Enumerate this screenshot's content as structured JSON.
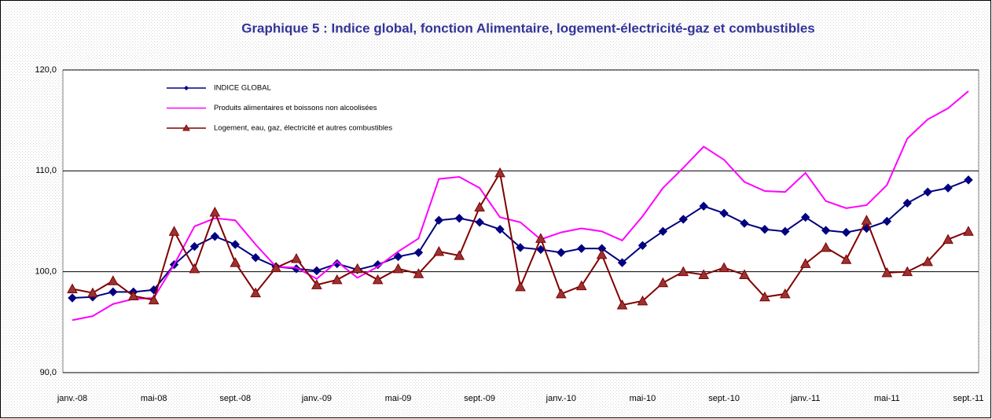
{
  "chart_data": {
    "type": "line",
    "title": "Graphique 5 : Indice global, fonction Alimentaire, logement-électricité-gaz et combustibles",
    "categories": [
      "janv.-08",
      null,
      null,
      null,
      "mai-08",
      null,
      null,
      null,
      "sept.-08",
      null,
      null,
      null,
      "janv.-09",
      null,
      null,
      null,
      "mai-09",
      null,
      null,
      null,
      "sept.-09",
      null,
      null,
      null,
      "janv.-10",
      null,
      null,
      null,
      "mai-10",
      null,
      null,
      null,
      "sept.-10",
      null,
      null,
      null,
      "janv.-11",
      null,
      null,
      null,
      "mai-11",
      null,
      null,
      null,
      "sept.-11"
    ],
    "series": [
      {
        "name": "INDICE  GLOBAL",
        "color": "#000080",
        "marker": "diamond",
        "values": [
          97.4,
          97.5,
          98.0,
          98.0,
          98.2,
          100.7,
          102.5,
          103.5,
          102.7,
          101.4,
          100.5,
          100.3,
          100.1,
          100.8,
          100.2,
          100.7,
          101.5,
          101.9,
          105.1,
          105.3,
          104.9,
          104.2,
          102.4,
          102.2,
          101.9,
          102.3,
          102.3,
          100.9,
          102.6,
          104.0,
          105.2,
          106.5,
          105.8,
          104.8,
          104.2,
          104.0,
          105.4,
          104.1,
          103.9,
          104.3,
          105.0,
          106.8,
          107.9,
          108.3,
          109.1
        ]
      },
      {
        "name": "Produits alimentaires et boissons non alcoolisées",
        "color": "#ff00ff",
        "marker": "none",
        "values": [
          95.2,
          95.6,
          96.8,
          97.3,
          97.4,
          100.7,
          104.5,
          105.3,
          105.1,
          102.7,
          100.5,
          100.4,
          99.3,
          101.0,
          99.4,
          100.5,
          102.0,
          103.3,
          109.2,
          109.4,
          108.3,
          105.4,
          104.9,
          103.2,
          103.9,
          104.3,
          104.0,
          103.1,
          105.5,
          108.3,
          110.3,
          112.4,
          111.1,
          108.9,
          108.0,
          107.9,
          109.8,
          107.0,
          106.3,
          106.6,
          108.6,
          113.2,
          115.1,
          116.2,
          117.9
        ]
      },
      {
        "name": "Logement, eau, gaz, électricité et autres combustibles",
        "color": "#800000",
        "marker": "triangle",
        "values": [
          98.3,
          97.9,
          99.1,
          97.6,
          97.2,
          104.0,
          100.3,
          105.9,
          100.9,
          97.9,
          100.4,
          101.3,
          98.7,
          99.2,
          100.3,
          99.2,
          100.3,
          99.8,
          102.0,
          101.6,
          106.4,
          109.8,
          98.5,
          103.3,
          97.8,
          98.6,
          101.7,
          96.7,
          97.1,
          98.9,
          100.0,
          99.7,
          100.4,
          99.7,
          97.5,
          97.8,
          100.8,
          102.4,
          101.2,
          105.1,
          99.9,
          100.0,
          101.0,
          103.2,
          104.0
        ]
      }
    ],
    "ylim": [
      90,
      120
    ],
    "yticks": [
      {
        "value": 90,
        "label": "90,0"
      },
      {
        "value": 100,
        "label": "100,0"
      },
      {
        "value": 110,
        "label": "110,0"
      },
      {
        "value": 120,
        "label": "120,0"
      }
    ],
    "grid": true,
    "legend": "top-left"
  }
}
